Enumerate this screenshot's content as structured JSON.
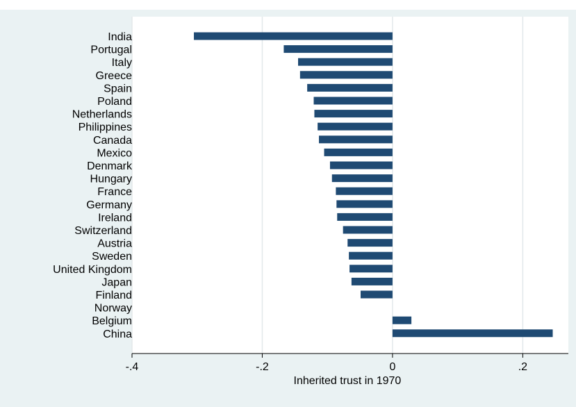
{
  "header_fragment": "",
  "chart_data": {
    "type": "bar",
    "orientation": "horizontal",
    "categories": [
      "India",
      "Portugal",
      "Italy",
      "Greece",
      "Spain",
      "Poland",
      "Netherlands",
      "Philippines",
      "Canada",
      "Mexico",
      "Denmark",
      "Hungary",
      "France",
      "Germany",
      "Ireland",
      "Switzerland",
      "Austria",
      "Sweden",
      "United Kingdom",
      "Japan",
      "Finland",
      "Norway",
      "Belgium",
      "China"
    ],
    "values": [
      -0.305,
      -0.167,
      -0.145,
      -0.142,
      -0.131,
      -0.121,
      -0.12,
      -0.115,
      -0.113,
      -0.105,
      -0.096,
      -0.093,
      -0.087,
      -0.086,
      -0.085,
      -0.076,
      -0.069,
      -0.067,
      -0.066,
      -0.063,
      -0.049,
      0.0,
      0.029,
      0.246
    ],
    "xlabel": "Inherited trust in 1970",
    "xlim": [
      -0.4,
      0.27
    ],
    "xticks": [
      -0.4,
      -0.2,
      0,
      0.2
    ],
    "xtick_labels": [
      "-.4",
      "-.2",
      "0",
      ".2"
    ],
    "grid": true,
    "bar_color": "#1f4a73",
    "plot_background": "#ffffff",
    "outer_background": "#eaf2f3"
  }
}
